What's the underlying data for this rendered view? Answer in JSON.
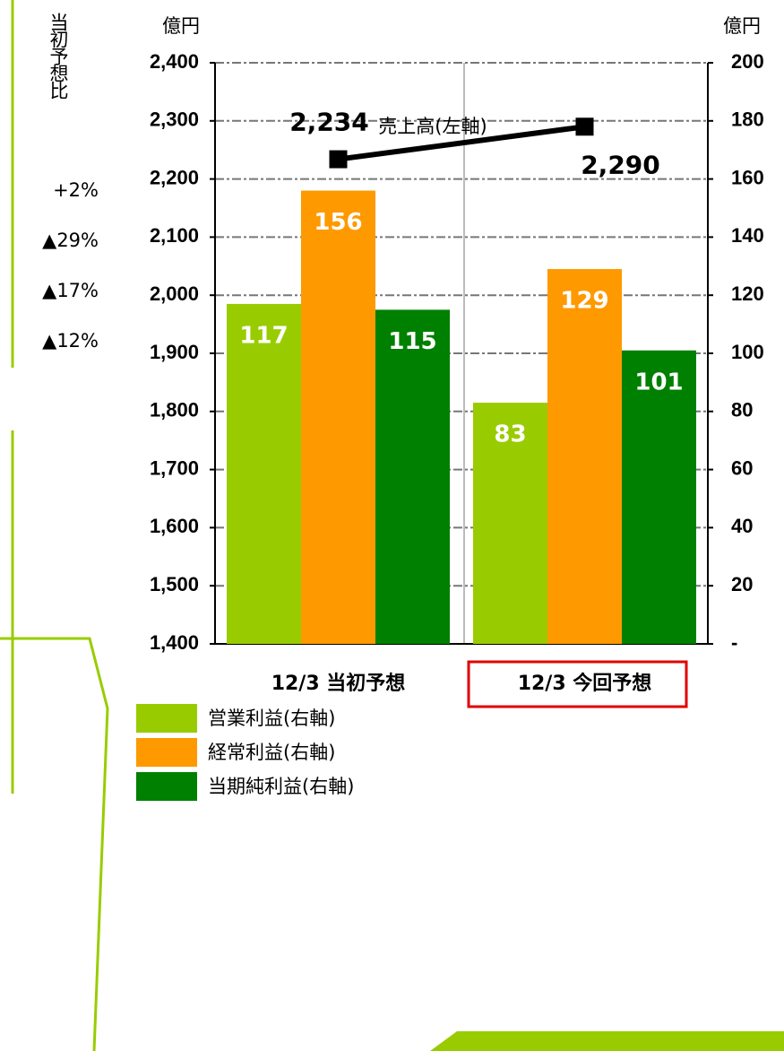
{
  "chart_data": {
    "type": "bar",
    "y_unit": "億円",
    "y2_unit": "億円",
    "categories": [
      "12/3 当初予想",
      "12/3 今回予想"
    ],
    "ylim": [
      1400,
      2400
    ],
    "yticks": [
      {
        "value": 1400,
        "label": "1,400"
      },
      {
        "value": 1500,
        "label": "1,500"
      },
      {
        "value": 1600,
        "label": "1,600"
      },
      {
        "value": 1700,
        "label": "1,700"
      },
      {
        "value": 1800,
        "label": "1,800"
      },
      {
        "value": 1900,
        "label": "1,900"
      },
      {
        "value": 2000,
        "label": "2,000"
      },
      {
        "value": 2100,
        "label": "2,100"
      },
      {
        "value": 2200,
        "label": "2,200"
      },
      {
        "value": 2300,
        "label": "2,300"
      },
      {
        "value": 2400,
        "label": "2,400"
      }
    ],
    "y2lim": [
      0,
      200
    ],
    "y2ticks": [
      {
        "value": 0,
        "label": "-"
      },
      20,
      40,
      60,
      80,
      100,
      120,
      140,
      160,
      180,
      200
    ],
    "grid": true,
    "series": [
      {
        "name": "営業利益(右軸)",
        "color": "#99cc00",
        "axis": "y2",
        "values": [
          117,
          83
        ]
      },
      {
        "name": "経常利益(右軸)",
        "color": "#ff9900",
        "axis": "y2",
        "values": [
          156,
          129
        ]
      },
      {
        "name": "当期純利益(右軸)",
        "color": "#008000",
        "axis": "y2",
        "values": [
          115,
          101
        ]
      },
      {
        "name": "売上高(左軸)",
        "type": "line",
        "color": "#000000",
        "axis": "y",
        "values": [
          2234,
          2290
        ],
        "value_labels": [
          "2,234",
          "2,290"
        ]
      }
    ]
  },
  "side_note": {
    "title": "当初予想比",
    "values": [
      "+2%",
      "▲29%",
      "▲17%",
      "▲12%"
    ]
  }
}
